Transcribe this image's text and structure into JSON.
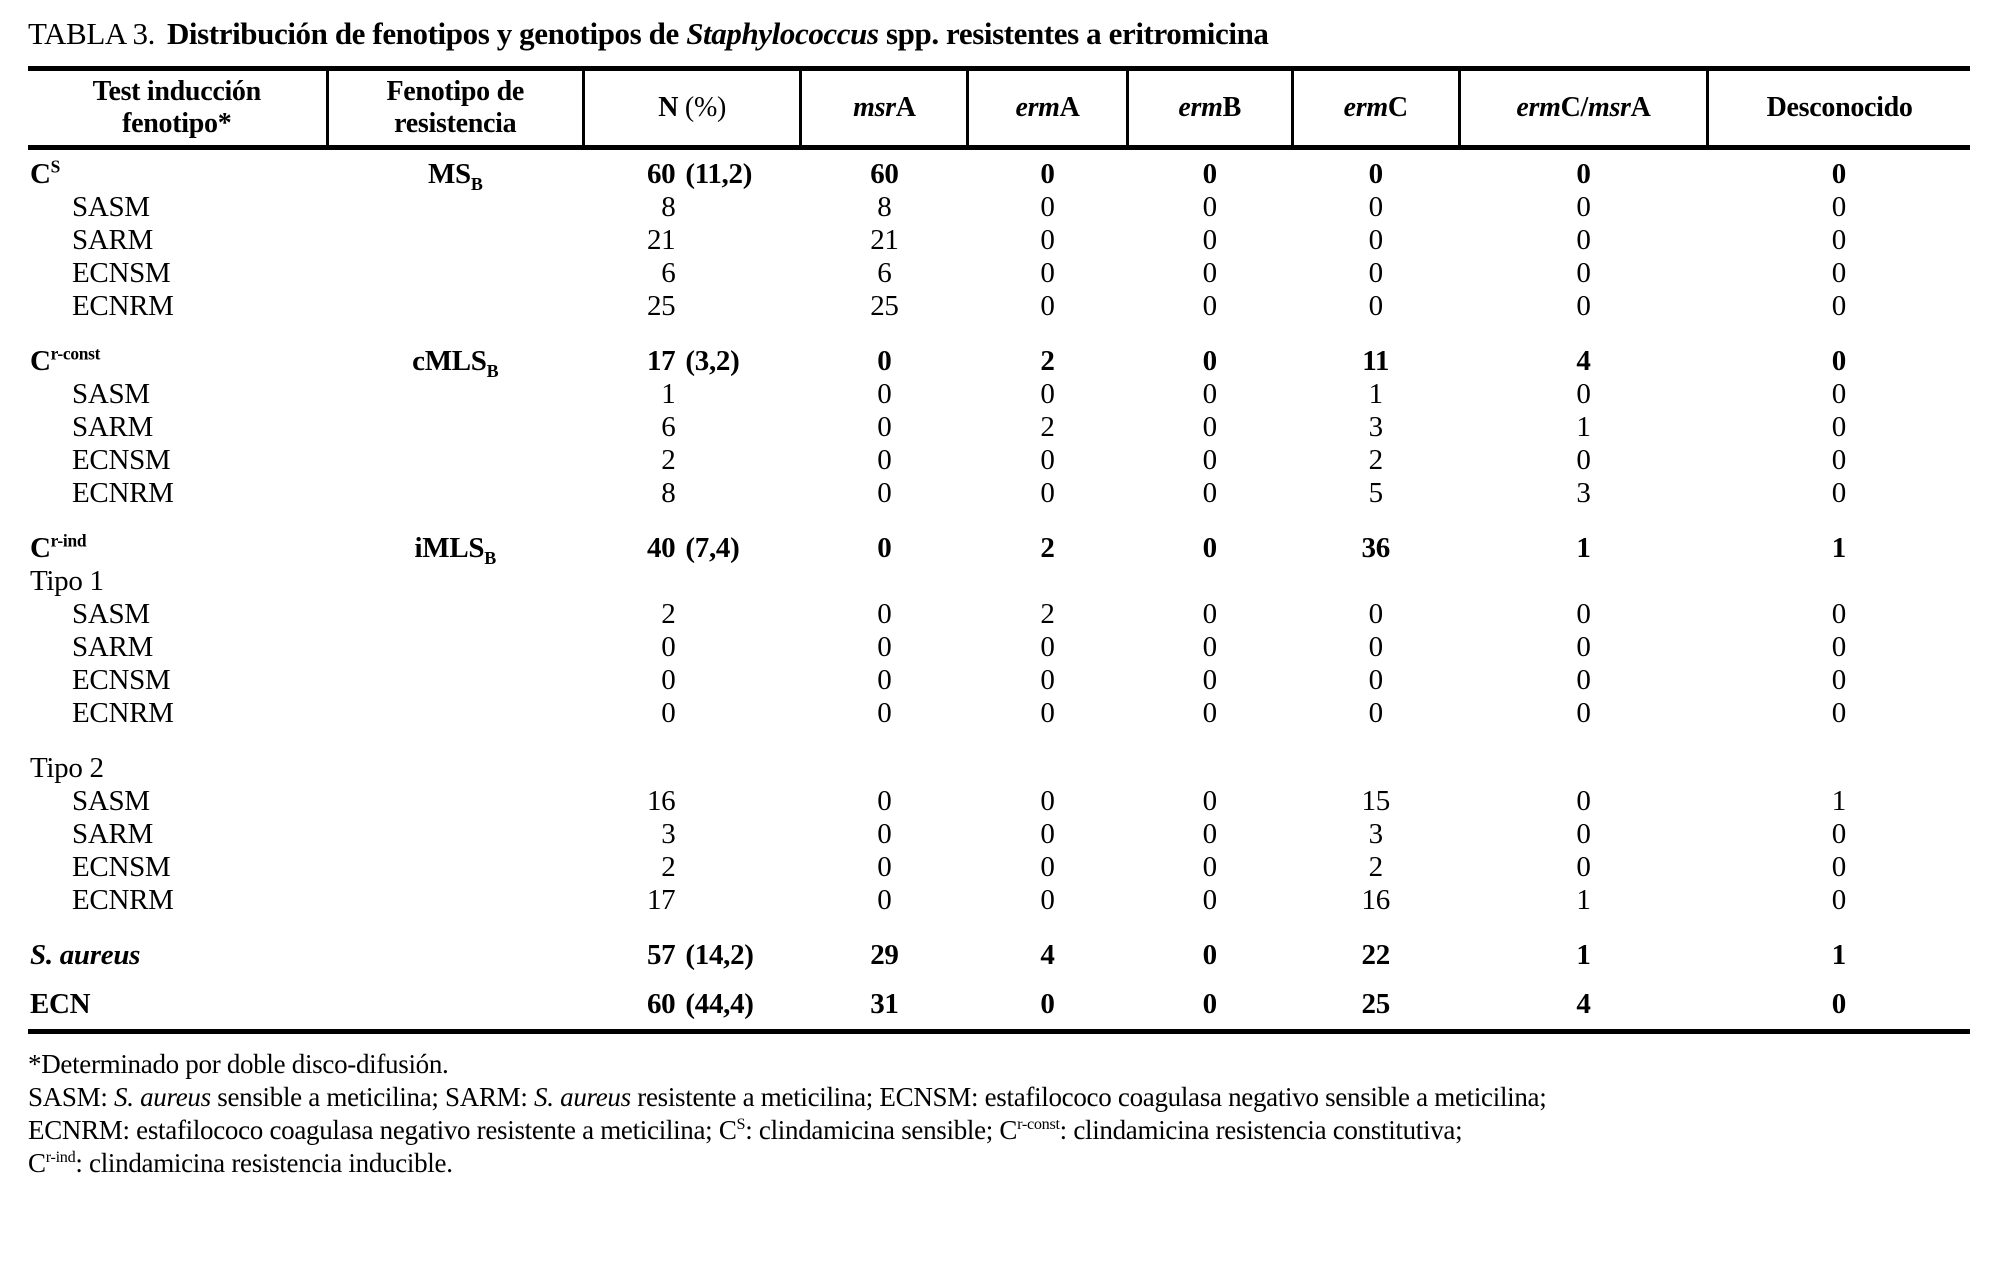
{
  "title": {
    "label": "TABLA 3.",
    "segments": [
      {
        "t": "Distribución de fenotipos y genotipos de "
      },
      {
        "t": "Staphylococcus",
        "f": "i"
      },
      {
        "t": " spp. resistentes a eritromicina"
      }
    ]
  },
  "table": {
    "columns": [
      {
        "key": "test",
        "width": 15.4,
        "header": [
          {
            "t": "Test inducción"
          },
          {
            "t": "fenotipo*",
            "br": true
          }
        ]
      },
      {
        "key": "fenotipo",
        "width": 13.2,
        "header": [
          {
            "t": "Fenotipo de"
          },
          {
            "t": "resistencia",
            "br": true
          }
        ]
      },
      {
        "key": "n",
        "width": 11.2,
        "header": [
          {
            "t": "N "
          },
          {
            "t": "(%)",
            "f": "r"
          }
        ]
      },
      {
        "key": "msrA",
        "width": 8.6,
        "header": [
          {
            "t": "msr",
            "f": "i"
          },
          {
            "t": "A"
          }
        ]
      },
      {
        "key": "ermA",
        "width": 8.2,
        "header": [
          {
            "t": "erm",
            "f": "i"
          },
          {
            "t": "A"
          }
        ]
      },
      {
        "key": "ermB",
        "width": 8.5,
        "header": [
          {
            "t": "erm",
            "f": "i"
          },
          {
            "t": "B"
          }
        ]
      },
      {
        "key": "ermC",
        "width": 8.6,
        "header": [
          {
            "t": "erm",
            "f": "i"
          },
          {
            "t": "C"
          }
        ]
      },
      {
        "key": "ermCmsrA",
        "width": 12.8,
        "header": [
          {
            "t": "erm",
            "f": "i"
          },
          {
            "t": "C/"
          },
          {
            "t": "msr",
            "f": "i"
          },
          {
            "t": "A"
          }
        ]
      },
      {
        "key": "desconocido",
        "width": 13.5,
        "header": [
          {
            "t": "Desconocido"
          }
        ]
      }
    ],
    "rows": [
      {
        "type": "pad"
      },
      {
        "type": "section",
        "label": [
          {
            "t": "C"
          },
          {
            "t": "S",
            "f": "sup"
          }
        ],
        "phen": [
          {
            "t": "MS"
          },
          {
            "t": "B",
            "f": "sub"
          }
        ],
        "n": {
          "count": "60",
          "pct": "(11,2)"
        },
        "vals": [
          "60",
          "0",
          "0",
          "0",
          "0",
          "0"
        ]
      },
      {
        "type": "sub",
        "label": [
          {
            "t": "SASM"
          }
        ],
        "n": {
          "count": "8"
        },
        "vals": [
          "8",
          "0",
          "0",
          "0",
          "0",
          "0"
        ]
      },
      {
        "type": "sub",
        "label": [
          {
            "t": "SARM"
          }
        ],
        "n": {
          "count": "21"
        },
        "vals": [
          "21",
          "0",
          "0",
          "0",
          "0",
          "0"
        ]
      },
      {
        "type": "sub",
        "label": [
          {
            "t": "ECNSM"
          }
        ],
        "n": {
          "count": "6"
        },
        "vals": [
          "6",
          "0",
          "0",
          "0",
          "0",
          "0"
        ]
      },
      {
        "type": "sub",
        "label": [
          {
            "t": "ECNRM"
          }
        ],
        "n": {
          "count": "25"
        },
        "vals": [
          "25",
          "0",
          "0",
          "0",
          "0",
          "0"
        ]
      },
      {
        "type": "gap"
      },
      {
        "type": "section",
        "label": [
          {
            "t": "C"
          },
          {
            "t": "r-const",
            "f": "sup"
          }
        ],
        "phen": [
          {
            "t": "cMLS"
          },
          {
            "t": "B",
            "f": "sub"
          }
        ],
        "n": {
          "count": "17",
          "pct": "(3,2)"
        },
        "vals": [
          "0",
          "2",
          "0",
          "11",
          "4",
          "0"
        ]
      },
      {
        "type": "sub",
        "label": [
          {
            "t": "SASM"
          }
        ],
        "n": {
          "count": "1"
        },
        "vals": [
          "0",
          "0",
          "0",
          "1",
          "0",
          "0"
        ]
      },
      {
        "type": "sub",
        "label": [
          {
            "t": "SARM"
          }
        ],
        "n": {
          "count": "6"
        },
        "vals": [
          "0",
          "2",
          "0",
          "3",
          "1",
          "0"
        ]
      },
      {
        "type": "sub",
        "label": [
          {
            "t": "ECNSM"
          }
        ],
        "n": {
          "count": "2"
        },
        "vals": [
          "0",
          "0",
          "0",
          "2",
          "0",
          "0"
        ]
      },
      {
        "type": "sub",
        "label": [
          {
            "t": "ECNRM"
          }
        ],
        "n": {
          "count": "8"
        },
        "vals": [
          "0",
          "0",
          "0",
          "5",
          "3",
          "0"
        ]
      },
      {
        "type": "gap"
      },
      {
        "type": "section",
        "label": [
          {
            "t": "C"
          },
          {
            "t": "r-ind",
            "f": "sup"
          }
        ],
        "phen": [
          {
            "t": "iMLS"
          },
          {
            "t": "B",
            "f": "sub"
          }
        ],
        "n": {
          "count": "40",
          "pct": "(7,4)"
        },
        "vals": [
          "0",
          "2",
          "0",
          "36",
          "1",
          "1"
        ]
      },
      {
        "type": "group",
        "label": [
          {
            "t": "Tipo 1"
          }
        ]
      },
      {
        "type": "sub",
        "label": [
          {
            "t": "SASM"
          }
        ],
        "n": {
          "count": "2"
        },
        "vals": [
          "0",
          "2",
          "0",
          "0",
          "0",
          "0"
        ]
      },
      {
        "type": "sub",
        "label": [
          {
            "t": "SARM"
          }
        ],
        "n": {
          "count": "0"
        },
        "vals": [
          "0",
          "0",
          "0",
          "0",
          "0",
          "0"
        ]
      },
      {
        "type": "sub",
        "label": [
          {
            "t": "ECNSM"
          }
        ],
        "n": {
          "count": "0"
        },
        "vals": [
          "0",
          "0",
          "0",
          "0",
          "0",
          "0"
        ]
      },
      {
        "type": "sub",
        "label": [
          {
            "t": "ECNRM"
          }
        ],
        "n": {
          "count": "0"
        },
        "vals": [
          "0",
          "0",
          "0",
          "0",
          "0",
          "0"
        ]
      },
      {
        "type": "gap"
      },
      {
        "type": "group",
        "label": [
          {
            "t": "Tipo 2"
          }
        ]
      },
      {
        "type": "sub",
        "label": [
          {
            "t": "SASM"
          }
        ],
        "n": {
          "count": "16"
        },
        "vals": [
          "0",
          "0",
          "0",
          "15",
          "0",
          "1"
        ]
      },
      {
        "type": "sub",
        "label": [
          {
            "t": "SARM"
          }
        ],
        "n": {
          "count": "3"
        },
        "vals": [
          "0",
          "0",
          "0",
          "3",
          "0",
          "0"
        ]
      },
      {
        "type": "sub",
        "label": [
          {
            "t": "ECNSM"
          }
        ],
        "n": {
          "count": "2"
        },
        "vals": [
          "0",
          "0",
          "0",
          "2",
          "0",
          "0"
        ]
      },
      {
        "type": "sub",
        "label": [
          {
            "t": "ECNRM"
          }
        ],
        "n": {
          "count": "17"
        },
        "vals": [
          "0",
          "0",
          "0",
          "16",
          "1",
          "0"
        ]
      },
      {
        "type": "gap"
      },
      {
        "type": "total",
        "label": [
          {
            "t": "S. aureus",
            "f": "i"
          }
        ],
        "n": {
          "count": "57",
          "pct": "(14,2)"
        },
        "vals": [
          "29",
          "4",
          "0",
          "22",
          "1",
          "1"
        ]
      },
      {
        "type": "gap-small"
      },
      {
        "type": "total",
        "label": [
          {
            "t": "ECN"
          }
        ],
        "n": {
          "count": "60",
          "pct": "(44,4)"
        },
        "vals": [
          "31",
          "0",
          "0",
          "25",
          "4",
          "0"
        ]
      },
      {
        "type": "pad"
      }
    ]
  },
  "footnotes": [
    [
      {
        "t": "*Determinado por doble disco-difusión."
      }
    ],
    [
      {
        "t": "SASM: "
      },
      {
        "t": "S. aureus",
        "f": "i"
      },
      {
        "t": " sensible a meticilina; SARM: "
      },
      {
        "t": "S. aureus",
        "f": "i"
      },
      {
        "t": " resistente a meticilina; ECNSM: estafilococo coagulasa negativo sensible a meticilina;"
      }
    ],
    [
      {
        "t": "ECNRM: estafilococo coagulasa negativo resistente a meticilina; C"
      },
      {
        "t": "S",
        "f": "sup"
      },
      {
        "t": ": clindamicina sensible; C"
      },
      {
        "t": "r-const",
        "f": "sup"
      },
      {
        "t": ": clindamicina resistencia constitutiva;"
      }
    ],
    [
      {
        "t": "C"
      },
      {
        "t": "r-ind",
        "f": "sup"
      },
      {
        "t": ": clindamicina resistencia inducible."
      }
    ]
  ]
}
